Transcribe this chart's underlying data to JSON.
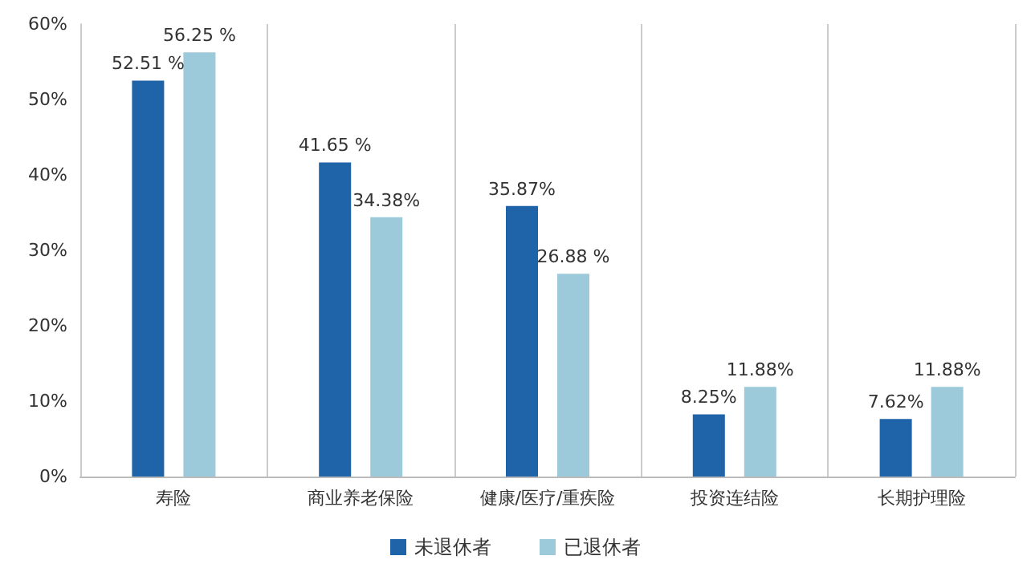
{
  "chart_data": {
    "type": "bar",
    "categories": [
      "寿险",
      "商业养老保险",
      "健康/医疗/重疾险",
      "投资连结险",
      "长期护理险"
    ],
    "series": [
      {
        "name": "未退休者",
        "color": "#1f64a8",
        "values": [
          52.51,
          41.65,
          35.87,
          8.25,
          7.62
        ],
        "value_labels": [
          "52.51 %",
          "41.65 %",
          "35.87%",
          "8.25%",
          "7.62%"
        ]
      },
      {
        "name": "已退休者",
        "color": "#9dcadb",
        "values": [
          56.25,
          34.38,
          26.88,
          11.88,
          11.88
        ],
        "value_labels": [
          "56.25 %",
          "34.38%",
          "26.88 %",
          "11.88%",
          "11.88%"
        ]
      }
    ],
    "ylim": [
      0,
      60
    ],
    "yticks": [
      {
        "value": 0,
        "label": "0%"
      },
      {
        "value": 10,
        "label": "10%"
      },
      {
        "value": 20,
        "label": "20%"
      },
      {
        "value": 30,
        "label": "30%"
      },
      {
        "value": 40,
        "label": "40%"
      },
      {
        "value": 50,
        "label": "50%"
      },
      {
        "value": 60,
        "label": "60%"
      }
    ],
    "grid": "x",
    "legend": "bottom"
  }
}
